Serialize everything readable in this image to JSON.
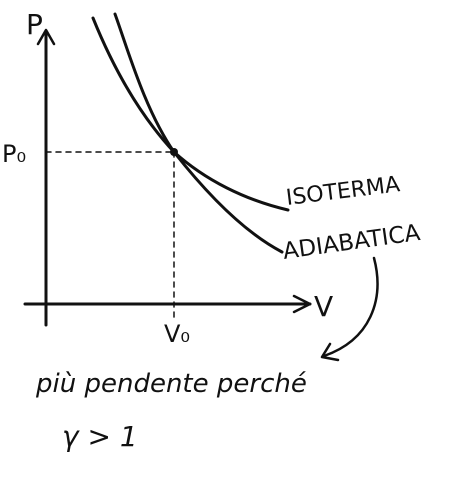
{
  "axes": {
    "y_label": "P",
    "x_label": "V",
    "p0_label": "P₀",
    "v0_label": "V₀"
  },
  "curves": {
    "isotherm_label": "ISOTERMA",
    "adiabatic_label": "ADIABATICA"
  },
  "note": {
    "line1": "più pendente perché",
    "line2": "γ > 1"
  },
  "colors": {
    "ink": "#111111",
    "background": "#ffffff"
  }
}
